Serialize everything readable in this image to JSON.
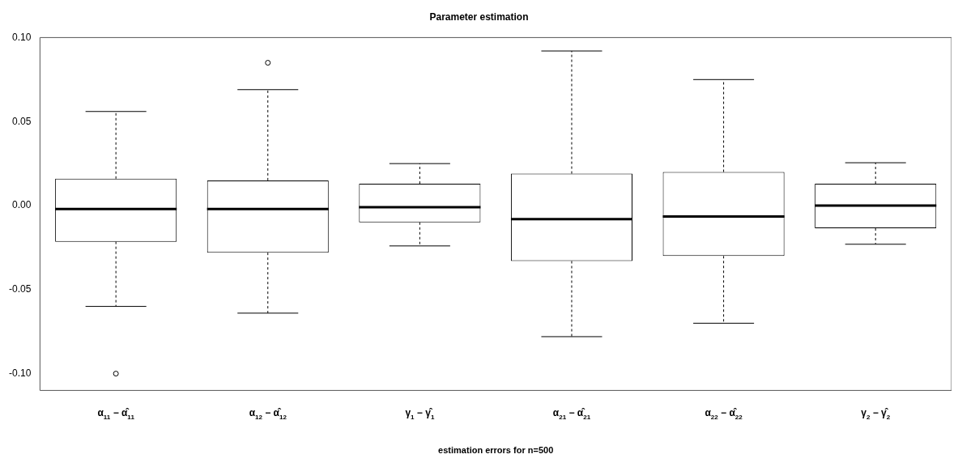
{
  "chart_data": {
    "type": "box",
    "title": "Parameter estimation",
    "xlabel": "estimation errors for n=500",
    "categories": [
      "α$_{11}$ − α̂$_{11}$",
      "α$_{12}$ − α̂$_{12}$",
      "γ$_{1}$ − γ̂$_{1}$",
      "α$_{21}$ − α̂$_{21}$",
      "α$_{22}$ − α̂$_{22}$",
      "γ$_{2}$ − γ̂$_{2}$"
    ],
    "boxes": [
      {
        "low": -0.06,
        "q1": -0.0215,
        "median": -0.002,
        "q3": 0.016,
        "high": 0.056,
        "outliers": [
          -0.1
        ]
      },
      {
        "low": -0.064,
        "q1": -0.028,
        "median": -0.002,
        "q3": 0.015,
        "high": 0.069,
        "outliers": [
          0.085
        ]
      },
      {
        "low": -0.024,
        "q1": -0.01,
        "median": -0.001,
        "q3": 0.013,
        "high": 0.025
      },
      {
        "low": -0.078,
        "q1": -0.033,
        "median": -0.008,
        "q3": 0.019,
        "high": 0.092
      },
      {
        "low": -0.07,
        "q1": -0.03,
        "median": -0.0065,
        "q3": 0.02,
        "high": 0.075
      },
      {
        "low": -0.023,
        "q1": -0.0135,
        "median": 0.0,
        "q3": 0.013,
        "high": 0.0255
      }
    ],
    "ylim": [
      -0.11,
      0.1
    ],
    "yticks": [
      {
        "value": -0.1,
        "label": "-0.10"
      },
      {
        "value": -0.05,
        "label": "-0.05"
      },
      {
        "value": 0,
        "label": "0.00"
      },
      {
        "value": 0.05,
        "label": "0.05"
      },
      {
        "value": 0.1,
        "label": "0.10"
      }
    ],
    "grid": false,
    "legend": false
  }
}
